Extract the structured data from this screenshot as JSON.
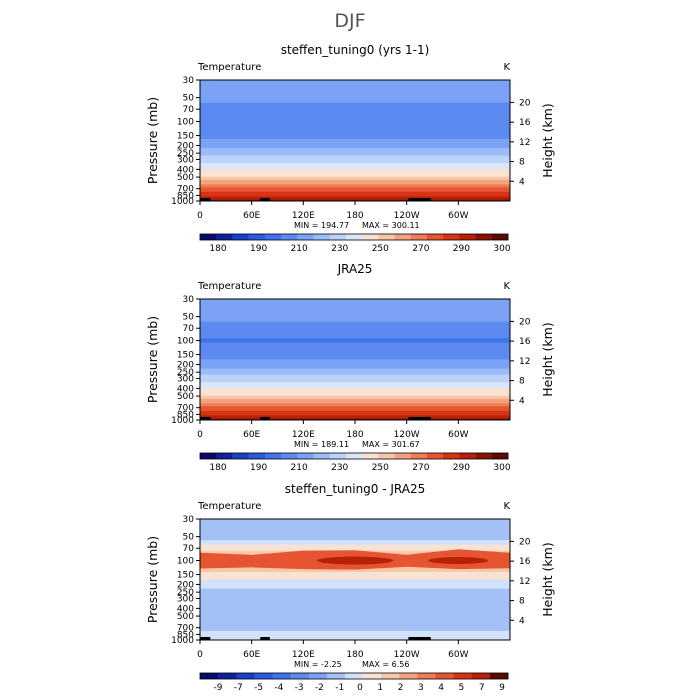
{
  "figure": {
    "title": "DJF"
  },
  "chart_data": [
    {
      "type": "heatmap",
      "title": "steffen_tuning0 (yrs 1-1)",
      "variable": "Temperature",
      "units": "K",
      "xlabel": "",
      "ylabel": "Pressure (mb)",
      "ylabel_right": "Height (km)",
      "x_ticks": [
        "0",
        "60E",
        "120E",
        "180",
        "120W",
        "60W"
      ],
      "x_values": [
        0,
        60,
        120,
        180,
        240,
        300
      ],
      "xlim": [
        0,
        360
      ],
      "y_ticks": [
        "30",
        "50",
        "70",
        "100",
        "150",
        "200",
        "250",
        "300",
        "400",
        "500",
        "700",
        "850",
        "1000"
      ],
      "y_values": [
        30,
        50,
        70,
        100,
        150,
        200,
        250,
        300,
        400,
        500,
        700,
        850,
        1000
      ],
      "ylim": [
        1000,
        30
      ],
      "height_ticks": [
        "4",
        "8",
        "12",
        "16",
        "20"
      ],
      "height_values": [
        4,
        8,
        12,
        16,
        20
      ],
      "min_label": "MIN = 194.77",
      "max_label": "MAX = 300.11",
      "min": 194.77,
      "max": 300.11,
      "colorbar_labels": [
        "180",
        "190",
        "210",
        "230",
        "250",
        "270",
        "290",
        "300"
      ],
      "colors": [
        "#0a0a6e",
        "#10209a",
        "#1a3fc8",
        "#2a5be0",
        "#3f74ec",
        "#5c8af0",
        "#7ba2f4",
        "#9bbcf7",
        "#bdd3f9",
        "#dbe6f9",
        "#f8e2d2",
        "#f8c6a8",
        "#f4a37e",
        "#ee7d55",
        "#e55532",
        "#d73414",
        "#b82008",
        "#8a1004",
        "#5a0a00"
      ],
      "levels": [
        175,
        180,
        185,
        190,
        200,
        210,
        220,
        230,
        240,
        250,
        260,
        265,
        270,
        275,
        280,
        285,
        290,
        295,
        300
      ],
      "profile": [
        {
          "p": 30,
          "v": 218
        },
        {
          "p": 50,
          "v": 212
        },
        {
          "p": 70,
          "v": 207
        },
        {
          "p": 100,
          "v": 203
        },
        {
          "p": 150,
          "v": 207
        },
        {
          "p": 200,
          "v": 216
        },
        {
          "p": 250,
          "v": 226
        },
        {
          "p": 300,
          "v": 235
        },
        {
          "p": 400,
          "v": 250
        },
        {
          "p": 500,
          "v": 261
        },
        {
          "p": 700,
          "v": 276
        },
        {
          "p": 850,
          "v": 284
        },
        {
          "p": 1000,
          "v": 292
        }
      ]
    },
    {
      "type": "heatmap",
      "title": "JRA25",
      "variable": "Temperature",
      "units": "K",
      "xlabel": "",
      "ylabel": "Pressure (mb)",
      "ylabel_right": "Height (km)",
      "x_ticks": [
        "0",
        "60E",
        "120E",
        "180",
        "120W",
        "60W"
      ],
      "x_values": [
        0,
        60,
        120,
        180,
        240,
        300
      ],
      "xlim": [
        0,
        360
      ],
      "y_ticks": [
        "30",
        "50",
        "70",
        "100",
        "150",
        "200",
        "250",
        "300",
        "400",
        "500",
        "700",
        "850",
        "1000"
      ],
      "y_values": [
        30,
        50,
        70,
        100,
        150,
        200,
        250,
        300,
        400,
        500,
        700,
        850,
        1000
      ],
      "ylim": [
        1000,
        30
      ],
      "height_ticks": [
        "4",
        "8",
        "12",
        "16",
        "20"
      ],
      "height_values": [
        4,
        8,
        12,
        16,
        20
      ],
      "min_label": "MIN = 189.11",
      "max_label": "MAX = 301.67",
      "min": 189.11,
      "max": 301.67,
      "colorbar_labels": [
        "180",
        "190",
        "210",
        "230",
        "250",
        "270",
        "290",
        "300"
      ],
      "colors": [
        "#0a0a6e",
        "#10209a",
        "#1a3fc8",
        "#2a5be0",
        "#3f74ec",
        "#5c8af0",
        "#7ba2f4",
        "#9bbcf7",
        "#bdd3f9",
        "#dbe6f9",
        "#f8e2d2",
        "#f8c6a8",
        "#f4a37e",
        "#ee7d55",
        "#e55532",
        "#d73414",
        "#b82008",
        "#8a1004",
        "#5a0a00"
      ],
      "levels": [
        175,
        180,
        185,
        190,
        200,
        210,
        220,
        230,
        240,
        250,
        260,
        265,
        270,
        275,
        280,
        285,
        290,
        295,
        300
      ],
      "profile": [
        {
          "p": 30,
          "v": 219
        },
        {
          "p": 50,
          "v": 213
        },
        {
          "p": 70,
          "v": 206
        },
        {
          "p": 100,
          "v": 199
        },
        {
          "p": 150,
          "v": 205
        },
        {
          "p": 200,
          "v": 215
        },
        {
          "p": 250,
          "v": 226
        },
        {
          "p": 300,
          "v": 235
        },
        {
          "p": 400,
          "v": 250
        },
        {
          "p": 500,
          "v": 261
        },
        {
          "p": 700,
          "v": 276
        },
        {
          "p": 850,
          "v": 284
        },
        {
          "p": 1000,
          "v": 293
        }
      ]
    },
    {
      "type": "heatmap",
      "title": "steffen_tuning0 - JRA25",
      "variable": "Temperature",
      "units": "K",
      "xlabel": "",
      "ylabel": "Pressure (mb)",
      "ylabel_right": "Height (km)",
      "x_ticks": [
        "0",
        "60E",
        "120E",
        "180",
        "120W",
        "60W"
      ],
      "x_values": [
        0,
        60,
        120,
        180,
        240,
        300
      ],
      "xlim": [
        0,
        360
      ],
      "y_ticks": [
        "30",
        "50",
        "70",
        "100",
        "150",
        "200",
        "250",
        "300",
        "400",
        "500",
        "700",
        "850",
        "1000"
      ],
      "y_values": [
        30,
        50,
        70,
        100,
        150,
        200,
        250,
        300,
        400,
        500,
        700,
        850,
        1000
      ],
      "ylim": [
        1000,
        30
      ],
      "height_ticks": [
        "4",
        "8",
        "12",
        "16",
        "20"
      ],
      "height_values": [
        4,
        8,
        12,
        16,
        20
      ],
      "min_label": "MIN = -2.25",
      "max_label": "MAX = 6.56",
      "min": -2.25,
      "max": 6.56,
      "colorbar_labels": [
        "-9",
        "-7",
        "-5",
        "-4",
        "-3",
        "-2",
        "-1",
        "0",
        "1",
        "2",
        "3",
        "4",
        "5",
        "7",
        "9"
      ],
      "colors": [
        "#0a0a6e",
        "#10209a",
        "#1a3fc8",
        "#2a5be0",
        "#3f74ec",
        "#5c8af0",
        "#7ba2f4",
        "#a3c1f7",
        "#d3e2fb",
        "#f8e2d2",
        "#f8c6a8",
        "#f4a37e",
        "#ee7d55",
        "#e55532",
        "#d73414",
        "#b82008",
        "#5a0a00"
      ],
      "levels": [
        -9,
        -7,
        -5,
        -4,
        -3,
        -2,
        -1,
        0,
        1,
        2,
        3,
        4,
        5,
        7,
        9
      ],
      "profile": [
        {
          "p": 30,
          "v": -0.5
        },
        {
          "p": 50,
          "v": -0.5
        },
        {
          "p": 70,
          "v": 1.5
        },
        {
          "p": 100,
          "v": 4.0
        },
        {
          "p": 150,
          "v": 1.5
        },
        {
          "p": 200,
          "v": 0.5
        },
        {
          "p": 250,
          "v": -0.5
        },
        {
          "p": 300,
          "v": -0.5
        },
        {
          "p": 400,
          "v": -0.5
        },
        {
          "p": 500,
          "v": -0.5
        },
        {
          "p": 700,
          "v": -0.3
        },
        {
          "p": 850,
          "v": 0.3
        },
        {
          "p": 1000,
          "v": 0.5
        }
      ]
    }
  ]
}
